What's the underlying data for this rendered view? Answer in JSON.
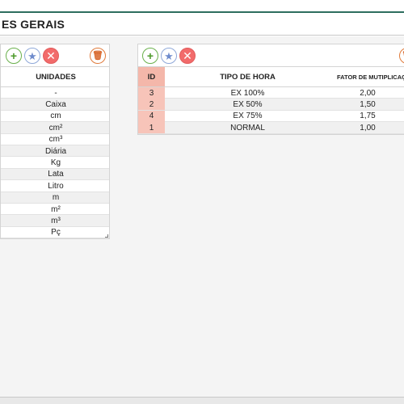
{
  "header": {
    "title": "ES GERAIS"
  },
  "units_table": {
    "column_header": "UNIDADES",
    "rows": [
      "-",
      "Caixa",
      "cm",
      "cm²",
      "cm³",
      "Diária",
      "Kg",
      "Lata",
      "Litro",
      "m",
      "m²",
      "m³",
      "Pç"
    ]
  },
  "hours_table": {
    "columns": {
      "id": "ID",
      "tipo": "TIPO DE HORA",
      "fator": "FATOR DE MUTIPLICAÇÃ"
    },
    "rows": [
      {
        "id": "3",
        "tipo": "EX 100%",
        "fator": "2,00"
      },
      {
        "id": "2",
        "tipo": "EX 50%",
        "fator": "1,50"
      },
      {
        "id": "4",
        "tipo": "EX 75%",
        "fator": "1,75"
      },
      {
        "id": "1",
        "tipo": "NORMAL",
        "fator": "1,00"
      }
    ]
  },
  "icons": {
    "add": "+",
    "favorite": "★",
    "delete": "✕",
    "trash": "🗑"
  },
  "colors": {
    "accent_rule": "#2e6e5e",
    "id_column": "#f4b7aa",
    "add": "#4c9a2a",
    "favorite": "#6f8ccc",
    "delete": "#d84040",
    "trash": "#d8662a"
  }
}
